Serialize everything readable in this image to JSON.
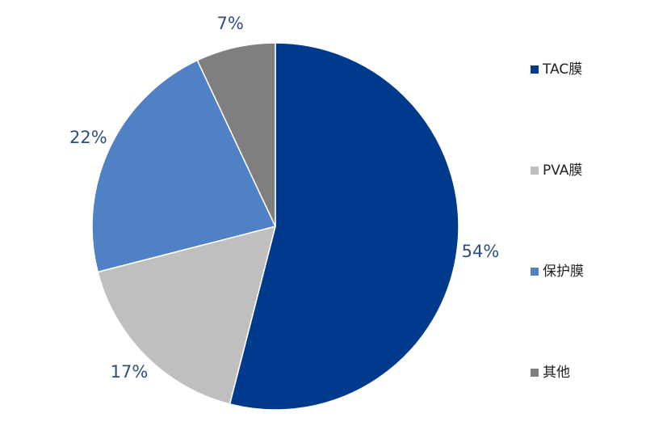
{
  "chart_data": {
    "type": "pie",
    "categories": [
      "TAC膜",
      "PVA膜",
      "保护膜",
      "其他"
    ],
    "values": [
      54,
      17,
      22,
      7
    ],
    "value_labels": [
      "54%",
      "17%",
      "22%",
      "7%"
    ],
    "colors": [
      "#003a8c",
      "#bfbfbf",
      "#4f81c4",
      "#7f7f7f"
    ],
    "legend": "right"
  }
}
